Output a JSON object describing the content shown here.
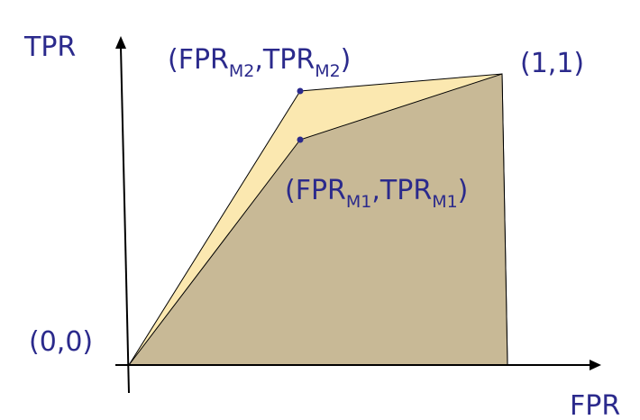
{
  "axes": {
    "y_label": "TPR",
    "x_label": "FPR"
  },
  "points": {
    "origin": "(0,0)",
    "corner": "(1,1)",
    "m2": {
      "open": "(FPR",
      "sub1": "M2",
      "mid": ",TPR",
      "sub2": "M2",
      "close": ")"
    },
    "m1": {
      "open": "(FPR",
      "sub1": "M1",
      "mid": ",TPR",
      "sub2": "M1",
      "close": ")"
    }
  },
  "colors": {
    "axis": "#000000",
    "text": "#2b2a8c",
    "region_m2": "#fbe8b0",
    "region_m1": "#c8b996",
    "marker": "#2b2a8c"
  }
}
